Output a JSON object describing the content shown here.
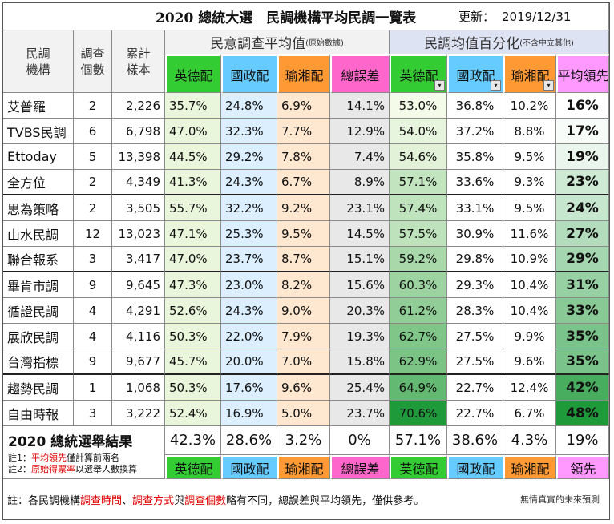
{
  "title_text": "2020 總統大選　民調機構平均民調一覽表",
  "update_label": "更新：",
  "update_date": "2019/12/31",
  "headers": {
    "org": "民調\n機構",
    "count": "調查\n個數",
    "sample": "累計\n樣本",
    "group1": "民意調查平均值",
    "group1_note": "(原始數據)",
    "group2": "民調均值百分化",
    "group2_note": "(不含中立其他)",
    "ying": "英德配",
    "guo": "國政配",
    "yu": "瑜湘配",
    "err": "總誤差",
    "lead": "平均領先"
  },
  "colors": {
    "ying_header": "#33cc33",
    "guo_header": "#66ccff",
    "yu_header": "#ff9933",
    "err_header": "#ff66cc",
    "lead_header": "#ff99ff",
    "ying_cell": "#eaf6dc",
    "guo_cell": "#dcefff",
    "yu_cell": "#ffe7d0",
    "err_cell": "#e8e8e8",
    "group2_bg": "#dde3f3"
  },
  "chart_data": {
    "type": "table",
    "columns": [
      "民調機構",
      "調查個數",
      "累計樣本",
      "英德配",
      "國政配",
      "瑜湘配",
      "總誤差",
      "英德配%",
      "國政配%",
      "瑜湘配%",
      "平均領先"
    ],
    "rows": [
      {
        "org": "艾普羅",
        "count": 2,
        "sample": "2,226",
        "ying": "35.7%",
        "guo": "24.8%",
        "yu": "6.9%",
        "err": "14.1%",
        "ying_pct": "53.0%",
        "guo_pct": "36.8%",
        "yu_pct": "10.2%",
        "lead": "16%",
        "ying_v": 53.0,
        "lead_v": 16
      },
      {
        "org": "TVBS民調",
        "count": 6,
        "sample": "6,798",
        "ying": "47.0%",
        "guo": "32.3%",
        "yu": "7.7%",
        "err": "12.9%",
        "ying_pct": "54.0%",
        "guo_pct": "37.2%",
        "yu_pct": "8.8%",
        "lead": "17%",
        "ying_v": 54.0,
        "lead_v": 17
      },
      {
        "org": "Ettoday",
        "count": 5,
        "sample": "13,398",
        "ying": "44.5%",
        "guo": "29.2%",
        "yu": "7.8%",
        "err": "7.4%",
        "ying_pct": "54.6%",
        "guo_pct": "35.8%",
        "yu_pct": "9.5%",
        "lead": "19%",
        "ying_v": 54.6,
        "lead_v": 19
      },
      {
        "org": "全方位",
        "count": 2,
        "sample": "4,349",
        "ying": "41.3%",
        "guo": "24.3%",
        "yu": "6.7%",
        "err": "8.9%",
        "ying_pct": "57.1%",
        "guo_pct": "33.6%",
        "yu_pct": "9.3%",
        "lead": "23%",
        "ying_v": 57.1,
        "lead_v": 23
      },
      {
        "org": "思為策略",
        "count": 2,
        "sample": "3,505",
        "ying": "55.7%",
        "guo": "32.2%",
        "yu": "9.2%",
        "err": "23.1%",
        "ying_pct": "57.4%",
        "guo_pct": "33.1%",
        "yu_pct": "9.5%",
        "lead": "24%",
        "ying_v": 57.4,
        "lead_v": 24
      },
      {
        "org": "山水民調",
        "count": 12,
        "sample": "13,023",
        "ying": "47.1%",
        "guo": "25.3%",
        "yu": "9.5%",
        "err": "14.5%",
        "ying_pct": "57.5%",
        "guo_pct": "30.9%",
        "yu_pct": "11.6%",
        "lead": "27%",
        "ying_v": 57.5,
        "lead_v": 27
      },
      {
        "org": "聯合報系",
        "count": 3,
        "sample": "3,417",
        "ying": "47.0%",
        "guo": "23.7%",
        "yu": "8.7%",
        "err": "15.1%",
        "ying_pct": "59.2%",
        "guo_pct": "29.8%",
        "yu_pct": "10.9%",
        "lead": "29%",
        "ying_v": 59.2,
        "lead_v": 29
      },
      {
        "org": "畢肯市調",
        "count": 9,
        "sample": "9,645",
        "ying": "47.3%",
        "guo": "23.0%",
        "yu": "8.2%",
        "err": "15.6%",
        "ying_pct": "60.3%",
        "guo_pct": "29.3%",
        "yu_pct": "10.4%",
        "lead": "31%",
        "ying_v": 60.3,
        "lead_v": 31
      },
      {
        "org": "循證民調",
        "count": 4,
        "sample": "4,291",
        "ying": "52.6%",
        "guo": "24.3%",
        "yu": "9.0%",
        "err": "20.3%",
        "ying_pct": "61.2%",
        "guo_pct": "28.3%",
        "yu_pct": "10.4%",
        "lead": "33%",
        "ying_v": 61.2,
        "lead_v": 33
      },
      {
        "org": "展欣民調",
        "count": 4,
        "sample": "4,116",
        "ying": "50.3%",
        "guo": "22.0%",
        "yu": "7.9%",
        "err": "19.3%",
        "ying_pct": "62.7%",
        "guo_pct": "27.5%",
        "yu_pct": "9.9%",
        "lead": "35%",
        "ying_v": 62.7,
        "lead_v": 35
      },
      {
        "org": "台灣指標",
        "count": 9,
        "sample": "9,677",
        "ying": "45.7%",
        "guo": "20.0%",
        "yu": "7.0%",
        "err": "15.8%",
        "ying_pct": "62.9%",
        "guo_pct": "27.5%",
        "yu_pct": "9.6%",
        "lead": "35%",
        "ying_v": 62.9,
        "lead_v": 35
      },
      {
        "org": "趨勢民調",
        "count": 1,
        "sample": "1,068",
        "ying": "50.3%",
        "guo": "17.6%",
        "yu": "9.6%",
        "err": "25.4%",
        "ying_pct": "64.9%",
        "guo_pct": "22.7%",
        "yu_pct": "12.4%",
        "lead": "42%",
        "ying_v": 64.9,
        "lead_v": 42
      },
      {
        "org": "自由時報",
        "count": 3,
        "sample": "3,222",
        "ying": "52.4%",
        "guo": "16.9%",
        "yu": "5.0%",
        "err": "23.7%",
        "ying_pct": "70.6%",
        "guo_pct": "22.7%",
        "yu_pct": "6.7%",
        "lead": "48%",
        "ying_v": 70.6,
        "lead_v": 48
      }
    ],
    "result": {
      "label": "2020 總統選舉結果",
      "ying": "42.3%",
      "guo": "28.6%",
      "yu": "3.2%",
      "err": "0%",
      "ying_pct": "57.1%",
      "guo_pct": "38.6%",
      "yu_pct": "4.3%",
      "lead": "19%"
    }
  },
  "notes": {
    "n1_prefix": "註1：",
    "n1_highlight": "平均領先",
    "n1_rest": "僅計算前兩名",
    "n2_prefix": "註2：",
    "n2_highlight": "原始得票率",
    "n2_rest": "以選舉人數換算",
    "footer_prefix": "註：各民調機構",
    "footer_h1": "調查時間",
    "footer_sep1": "、",
    "footer_h2": "調查方式",
    "footer_mid": "與",
    "footer_h3": "調查個數",
    "footer_rest": "略有不同，總誤差與平均領先，僅供參考。",
    "credit": "無情真實的未來預測"
  },
  "bottom_labels": {
    "ying": "英德配",
    "guo": "國政配",
    "yu": "瑜湘配",
    "err": "總誤差",
    "lead": "領先"
  },
  "dropdown_glyph": "▾"
}
